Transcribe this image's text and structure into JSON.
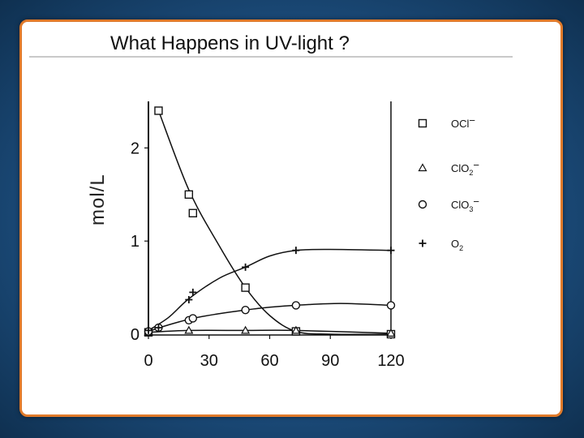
{
  "slide": {
    "title": "What Happens in UV-light ?"
  },
  "chart_data": {
    "type": "line",
    "title": "What Happens in UV-light ?",
    "xlabel": "",
    "ylabel": "mol/L",
    "xlim": [
      0,
      130
    ],
    "ylim": [
      0,
      2.5
    ],
    "x_ticks": [
      0,
      30,
      60,
      90,
      120
    ],
    "y_ticks": [
      0,
      1,
      2
    ],
    "grid": false,
    "legend_position": "right",
    "series": [
      {
        "name": "OCl⁻",
        "marker": "square",
        "points": [
          [
            0,
            0.02
          ],
          [
            5,
            2.4
          ],
          [
            20,
            1.5
          ],
          [
            22,
            1.3
          ],
          [
            48,
            0.5
          ],
          [
            73,
            0.03
          ],
          [
            120,
            0.0
          ]
        ],
        "curve": [
          [
            5,
            2.4
          ],
          [
            20,
            1.55
          ],
          [
            35,
            0.95
          ],
          [
            48,
            0.5
          ],
          [
            60,
            0.2
          ],
          [
            73,
            0.03
          ],
          [
            90,
            0.0
          ],
          [
            120,
            0.0
          ]
        ]
      },
      {
        "name": "ClO₂⁻",
        "marker": "triangle",
        "points": [
          [
            0,
            0.02
          ],
          [
            20,
            0.04
          ],
          [
            48,
            0.04
          ],
          [
            73,
            0.04
          ],
          [
            120,
            0.01
          ]
        ],
        "curve": [
          [
            0,
            0.02
          ],
          [
            20,
            0.04
          ],
          [
            48,
            0.04
          ],
          [
            73,
            0.04
          ],
          [
            120,
            0.01
          ]
        ]
      },
      {
        "name": "ClO₃⁻",
        "marker": "circle",
        "points": [
          [
            0,
            0.03
          ],
          [
            5,
            0.07
          ],
          [
            20,
            0.15
          ],
          [
            22,
            0.17
          ],
          [
            48,
            0.26
          ],
          [
            73,
            0.31
          ],
          [
            120,
            0.31
          ]
        ],
        "curve": [
          [
            0,
            0.03
          ],
          [
            10,
            0.1
          ],
          [
            22,
            0.17
          ],
          [
            35,
            0.22
          ],
          [
            48,
            0.26
          ],
          [
            60,
            0.29
          ],
          [
            73,
            0.31
          ],
          [
            95,
            0.33
          ],
          [
            120,
            0.31
          ]
        ]
      },
      {
        "name": "O₂",
        "marker": "plus",
        "points": [
          [
            0,
            0.04
          ],
          [
            5,
            0.07
          ],
          [
            20,
            0.37
          ],
          [
            22,
            0.45
          ],
          [
            48,
            0.72
          ],
          [
            73,
            0.9
          ],
          [
            120,
            0.9
          ]
        ],
        "curve": [
          [
            0,
            0.04
          ],
          [
            10,
            0.18
          ],
          [
            20,
            0.38
          ],
          [
            35,
            0.6
          ],
          [
            48,
            0.72
          ],
          [
            60,
            0.84
          ],
          [
            73,
            0.9
          ],
          [
            90,
            0.91
          ],
          [
            120,
            0.9
          ]
        ]
      }
    ]
  },
  "legend": {
    "items": [
      {
        "base": "OCl",
        "sup": "−",
        "sub": ""
      },
      {
        "base": "ClO",
        "sub": "2",
        "sup": "−"
      },
      {
        "base": "ClO",
        "sub": "3",
        "sup": "−"
      },
      {
        "base": "O",
        "sub": "2",
        "sup": ""
      }
    ]
  }
}
